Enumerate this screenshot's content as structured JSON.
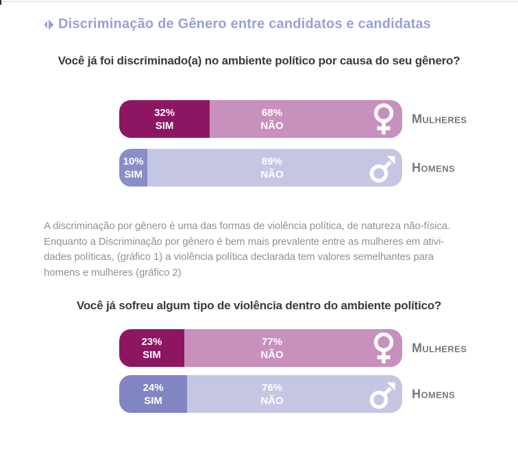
{
  "header": {
    "title": "Discriminação de Gênero entre candidatos e candidatas"
  },
  "colors": {
    "accent_title": "#99a0d6",
    "women_sim": "#8d1663",
    "women_nao": "#c890bc",
    "men_sim": "#8a8dc7",
    "men_sim_chart2": "#8185c2",
    "men_nao": "#c4c6e4",
    "question_text": "#3a3a3c",
    "note_text": "#909194",
    "group_label_text": "#77787b",
    "bar_value_text": "#ffffff"
  },
  "charts": [
    {
      "question": "Você já foi discriminado(a) no ambiente político por causa do seu gênero?",
      "bars": [
        {
          "group": "Mulheres",
          "icon": "female-icon",
          "sim_pct": 32,
          "sim_value": "32%",
          "sim_word": "SIM",
          "nao_value": "68%",
          "nao_word": "NÃO",
          "sim_color": "#8d1663",
          "nao_color": "#c890bc"
        },
        {
          "group": "Homens",
          "icon": "male-icon",
          "sim_pct": 10,
          "sim_value": "10%",
          "sim_word": "SIM",
          "nao_value": "89%",
          "nao_word": "NÃO",
          "sim_color": "#8a8dc7",
          "nao_color": "#c4c6e4"
        }
      ]
    },
    {
      "question": "Você já sofreu algum tipo de violência dentro do ambiente político?",
      "bars": [
        {
          "group": "Mulheres",
          "icon": "female-icon",
          "sim_pct": 23,
          "sim_value": "23%",
          "sim_word": "SIM",
          "nao_value": "77%",
          "nao_word": "NÃO",
          "sim_color": "#8d1663",
          "nao_color": "#c890bc"
        },
        {
          "group": "Homens",
          "icon": "male-icon",
          "sim_pct": 24,
          "sim_value": "24%",
          "sim_word": "SIM",
          "nao_value": "76%",
          "nao_word": "NÃO",
          "sim_color": "#8185c2",
          "nao_color": "#c4c6e4"
        }
      ]
    }
  ],
  "note": {
    "lines": [
      "A discriminação por gênero é uma das formas de violência política, de natureza não-física.",
      "Enquanto a Discriminação por gênero é bem mais prevalente entre as mulheres em ativi-",
      "dades políticas, (gráfico 1) a violência política declarada tem valores semelhantes para",
      "homens e mulheres (gráfico 2)"
    ]
  },
  "chart_data": [
    {
      "type": "bar",
      "orientation": "horizontal",
      "stacked": true,
      "title": "Você já foi discriminado(a) no ambiente político por causa do seu gênero?",
      "categories": [
        "Mulheres",
        "Homens"
      ],
      "series": [
        {
          "name": "Sim",
          "values": [
            32,
            10
          ]
        },
        {
          "name": "Não",
          "values": [
            68,
            89
          ]
        }
      ],
      "unit": "%",
      "xlim": [
        0,
        100
      ],
      "legend_position": "none",
      "grid": false
    },
    {
      "type": "bar",
      "orientation": "horizontal",
      "stacked": true,
      "title": "Você já sofreu algum tipo de violência dentro do ambiente político?",
      "categories": [
        "Mulheres",
        "Homens"
      ],
      "series": [
        {
          "name": "Sim",
          "values": [
            23,
            24
          ]
        },
        {
          "name": "Não",
          "values": [
            77,
            76
          ]
        }
      ],
      "unit": "%",
      "xlim": [
        0,
        100
      ],
      "legend_position": "none",
      "grid": false
    }
  ]
}
